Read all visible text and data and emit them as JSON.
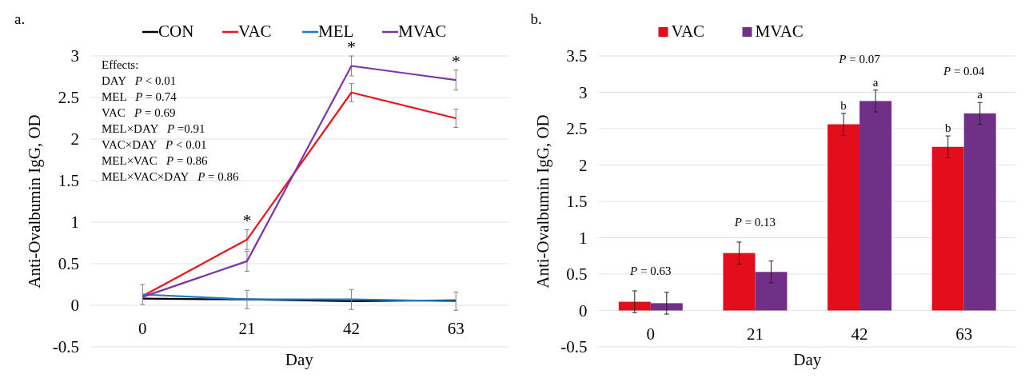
{
  "chart_data": [
    {
      "type": "line",
      "title": "a.",
      "xlabel": "Day",
      "ylabel": "Anti-Ovalbumin IgG, OD",
      "categories": [
        "0",
        "21",
        "42",
        "63"
      ],
      "series": [
        {
          "name": "CON",
          "color": "#000000",
          "values": [
            0.08,
            0.07,
            0.05,
            0.06
          ]
        },
        {
          "name": "VAC",
          "color": "#e8141b",
          "values": [
            0.11,
            0.79,
            2.56,
            2.25
          ],
          "errors": [
            null,
            0.12,
            0.11,
            0.11
          ]
        },
        {
          "name": "MEL",
          "color": "#1f78c8",
          "values": [
            0.13,
            0.07,
            0.07,
            0.05
          ],
          "errors": [
            0.12,
            0.11,
            0.12,
            0.11
          ]
        },
        {
          "name": "MVAC",
          "color": "#7b35a8",
          "values": [
            0.1,
            0.53,
            2.88,
            2.71
          ],
          "errors": [
            null,
            0.12,
            0.12,
            0.12
          ]
        }
      ],
      "ylim": [
        -0.5,
        3
      ],
      "yticks": [
        -0.5,
        0,
        0.5,
        1,
        1.5,
        2,
        2.5,
        3
      ],
      "grid": "y",
      "legend": "top",
      "marker": "none",
      "line_style": "solid",
      "annotations": [
        "Effects:",
        "DAY   P < 0.01",
        "MEL   P = 0.74",
        "VAC   P = 0.69",
        "MEL×DAY   P =0.91",
        "VAC×DAY   P < 0.01",
        "MEL×VAC   P = 0.86",
        "MEL×VAC×DAY   P = 0.86",
        "*",
        "*",
        "*"
      ]
    },
    {
      "type": "bar",
      "title": "b.",
      "xlabel": "Day",
      "ylabel": "Anti-Ovalbumin IgG, OD",
      "categories": [
        "0",
        "21",
        "42",
        "63"
      ],
      "series": [
        {
          "name": "VAC",
          "color": "#e30d1b",
          "values": [
            0.12,
            0.79,
            2.56,
            2.25
          ],
          "errors": [
            0.15,
            0.15,
            0.15,
            0.15
          ],
          "value_labels": [
            null,
            null,
            "b",
            "b"
          ]
        },
        {
          "name": "MVAC",
          "color": "#703087",
          "values": [
            0.1,
            0.53,
            2.88,
            2.71
          ],
          "errors": [
            0.15,
            0.15,
            0.15,
            0.15
          ],
          "value_labels": [
            null,
            null,
            "a",
            "a"
          ]
        }
      ],
      "ylim": [
        -0.5,
        3.5
      ],
      "yticks": [
        -0.5,
        0,
        0.5,
        1,
        1.5,
        2,
        2.5,
        3,
        3.5
      ],
      "grid": "y",
      "legend": "top",
      "annotations": [
        "P = 0.63",
        "P = 0.13",
        "P = 0.07",
        "P = 0.04"
      ]
    }
  ]
}
